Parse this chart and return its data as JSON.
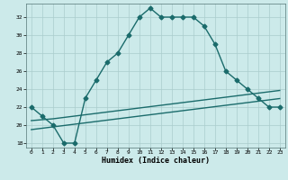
{
  "xlabel": "Humidex (Indice chaleur)",
  "background_color": "#cceaea",
  "grid_color": "#aacccc",
  "line_color": "#1a6b6b",
  "x_main": [
    0,
    1,
    2,
    3,
    4,
    5,
    6,
    7,
    8,
    9,
    10,
    11,
    12,
    13,
    14,
    15,
    16,
    17,
    18,
    19,
    20,
    21,
    22,
    23
  ],
  "y_main": [
    22,
    21,
    20,
    18,
    18,
    23,
    25,
    27,
    28,
    30,
    32,
    33,
    32,
    32,
    32,
    32,
    31,
    29,
    26,
    25,
    24,
    23,
    22,
    22
  ],
  "y_line1": [
    20.5,
    20.6,
    20.7,
    20.85,
    21.0,
    21.15,
    21.3,
    21.45,
    21.6,
    21.75,
    21.9,
    22.05,
    22.2,
    22.35,
    22.5,
    22.65,
    22.8,
    22.95,
    23.1,
    23.25,
    23.4,
    23.55,
    23.7,
    23.85
  ],
  "y_line2": [
    19.5,
    19.65,
    19.8,
    19.95,
    20.1,
    20.25,
    20.4,
    20.55,
    20.7,
    20.85,
    21.0,
    21.15,
    21.3,
    21.45,
    21.6,
    21.75,
    21.9,
    22.05,
    22.2,
    22.35,
    22.5,
    22.65,
    22.8,
    22.95
  ],
  "ylim": [
    17.5,
    33.5
  ],
  "xlim": [
    -0.5,
    23.5
  ],
  "yticks": [
    18,
    20,
    22,
    24,
    26,
    28,
    30,
    32
  ],
  "xticks": [
    0,
    1,
    2,
    3,
    4,
    5,
    6,
    7,
    8,
    9,
    10,
    11,
    12,
    13,
    14,
    15,
    16,
    17,
    18,
    19,
    20,
    21,
    22,
    23
  ],
  "markersize": 2.5,
  "linewidth": 1.0
}
